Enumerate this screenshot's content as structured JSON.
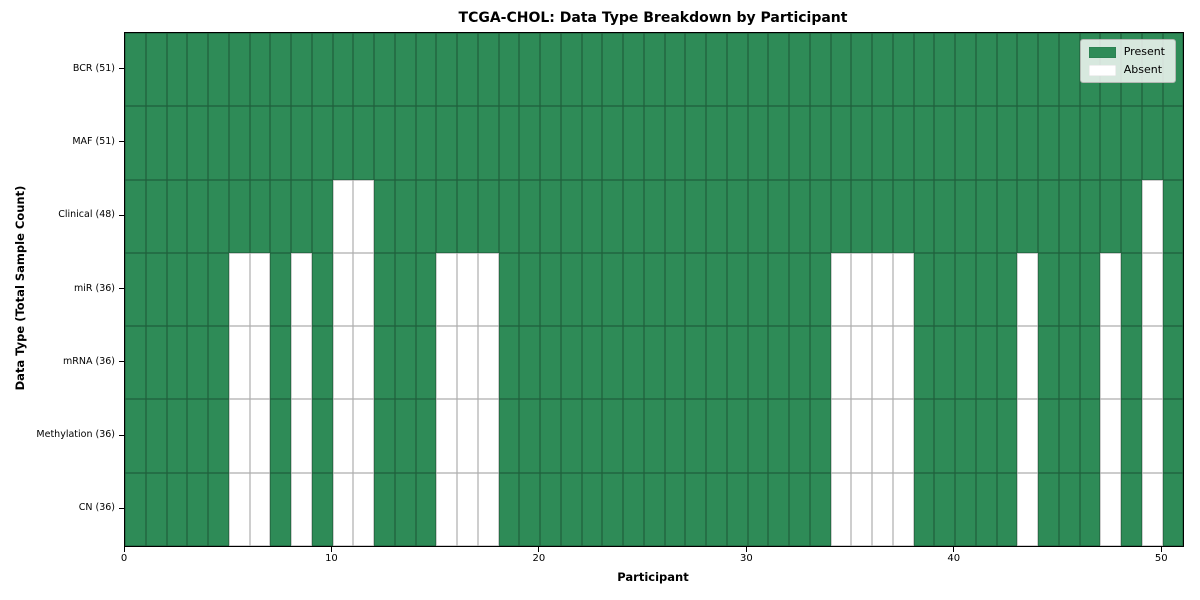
{
  "chart_data": {
    "type": "heatmap",
    "title": "TCGA-CHOL: Data Type Breakdown by Participant",
    "xlabel": "Participant",
    "ylabel": "Data Type (Total Sample Count)",
    "x_ticks": [
      0,
      10,
      20,
      30,
      40,
      50
    ],
    "x_range": [
      0,
      51
    ],
    "n_participants": 51,
    "rows": [
      {
        "label": "BCR (51)",
        "data_type": "BCR",
        "present_count": 51,
        "absent_participants": []
      },
      {
        "label": "MAF (51)",
        "data_type": "MAF",
        "present_count": 51,
        "absent_participants": []
      },
      {
        "label": "Clinical (48)",
        "data_type": "Clinical",
        "present_count": 48,
        "absent_participants": [
          10,
          11,
          49
        ]
      },
      {
        "label": "miR (36)",
        "data_type": "miR",
        "present_count": 36,
        "absent_participants": [
          5,
          6,
          8,
          10,
          11,
          15,
          16,
          17,
          34,
          35,
          36,
          37,
          43,
          47,
          49
        ]
      },
      {
        "label": "mRNA (36)",
        "data_type": "mRNA",
        "present_count": 36,
        "absent_participants": [
          5,
          6,
          8,
          10,
          11,
          15,
          16,
          17,
          34,
          35,
          36,
          37,
          43,
          47,
          49
        ]
      },
      {
        "label": "Methylation (36)",
        "data_type": "Methylation",
        "present_count": 36,
        "absent_participants": [
          5,
          6,
          8,
          10,
          11,
          15,
          16,
          17,
          34,
          35,
          36,
          37,
          43,
          47,
          49
        ]
      },
      {
        "label": "CN (36)",
        "data_type": "CN",
        "present_count": 36,
        "absent_participants": [
          5,
          6,
          8,
          10,
          11,
          15,
          16,
          17,
          34,
          35,
          36,
          37,
          43,
          47,
          49
        ]
      }
    ],
    "legend": {
      "position": "upper right",
      "items": [
        {
          "label": "Present",
          "color": "#2e8b57"
        },
        {
          "label": "Absent",
          "color": "#ffffff"
        }
      ]
    },
    "colors": {
      "present": "#2e8b57",
      "absent": "#ffffff",
      "cell_edge": "#00000052",
      "plot_border": "#000000"
    },
    "grid": true
  }
}
